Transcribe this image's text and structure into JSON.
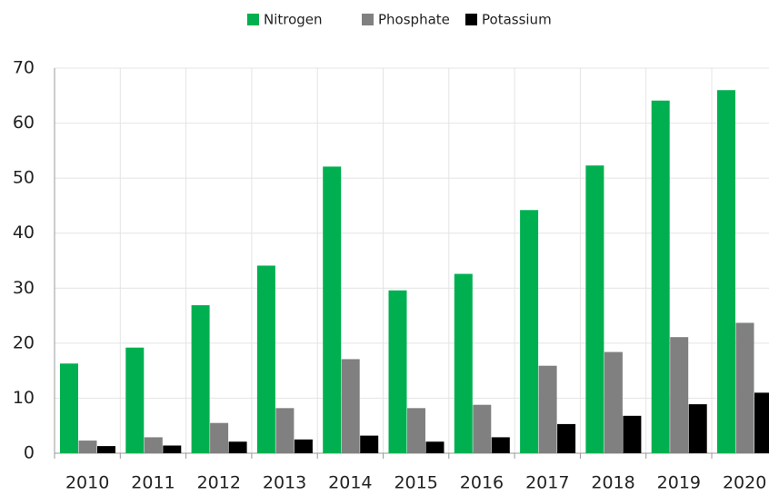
{
  "chart_data": {
    "type": "bar",
    "categories": [
      "2010",
      "2011",
      "2012",
      "2013",
      "2014",
      "2015",
      "2016",
      "2017",
      "2018",
      "2019",
      "2020"
    ],
    "series": [
      {
        "name": "Nitrogen",
        "color": "#00b050",
        "values": [
          16.3,
          19.2,
          26.9,
          34.1,
          52.1,
          29.6,
          32.6,
          44.2,
          52.3,
          64.1,
          66.0
        ]
      },
      {
        "name": "Phosphate",
        "color": "#808080",
        "values": [
          2.3,
          2.9,
          5.5,
          8.2,
          17.1,
          8.2,
          8.8,
          15.9,
          18.4,
          21.1,
          23.7
        ]
      },
      {
        "name": "Potassium",
        "color": "#000000",
        "values": [
          1.3,
          1.4,
          2.1,
          2.5,
          3.2,
          2.1,
          2.9,
          5.3,
          6.8,
          8.9,
          11.0
        ]
      }
    ],
    "ylim": [
      0,
      70
    ],
    "yticks": [
      0,
      10,
      20,
      30,
      40,
      50,
      60,
      70
    ],
    "grid": true,
    "legend": "top"
  }
}
